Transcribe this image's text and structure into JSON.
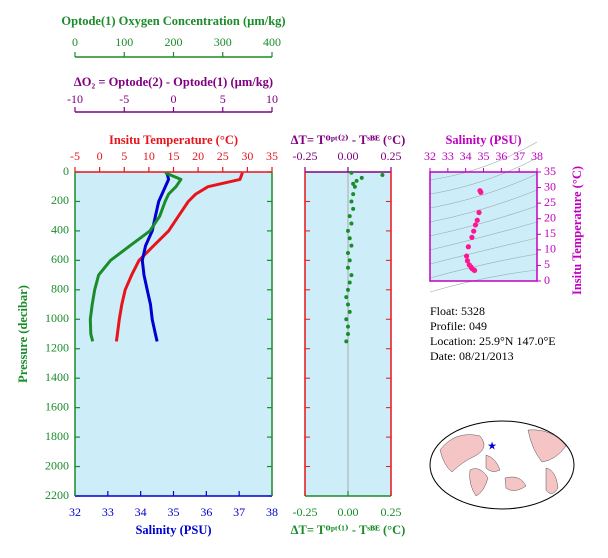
{
  "chart_data": [
    {
      "type": "profile",
      "y_label": "Pressure (decibar)",
      "y_color": "#1a8c2a",
      "ylim": [
        0,
        2200
      ],
      "yticks": [
        0,
        200,
        400,
        600,
        800,
        1000,
        1200,
        1400,
        1600,
        1800,
        2000,
        2200
      ],
      "pressure": [
        5,
        50,
        100,
        150,
        200,
        300,
        400,
        500,
        600,
        700,
        800,
        900,
        1000,
        1100,
        1150
      ],
      "x_axes": [
        {
          "label": "Insitu Temperature (°C)",
          "color": "#e8141c",
          "xlim": [
            -5,
            35
          ],
          "xticks": [
            -5,
            0,
            5,
            10,
            15,
            20,
            25,
            30,
            35
          ]
        },
        {
          "label": "Salinity (PSU)",
          "color": "#0000d0",
          "xlim": [
            32,
            38
          ],
          "xticks": [
            32,
            33,
            34,
            35,
            36,
            37,
            38
          ]
        },
        {
          "label": "Optode(1) Oxygen Concentration (µm/kg)",
          "color": "#1a8c2a",
          "xlim": [
            0,
            400
          ],
          "xticks": [
            0,
            100,
            200,
            300,
            400
          ]
        },
        {
          "label": "ΔO₂ = Optode(2) - Optode(1)     (µm/kg)",
          "color": "#800080",
          "xlim": [
            -10,
            10
          ],
          "xticks": [
            -10,
            -5,
            0,
            5,
            10
          ]
        }
      ],
      "series": [
        {
          "axis": 0,
          "color": "#e8141c",
          "values": [
            29,
            28.5,
            22,
            19.5,
            18,
            16,
            14,
            11,
            8,
            6.5,
            5.2,
            4.5,
            4,
            3.6,
            3.4
          ]
        },
        {
          "axis": 1,
          "color": "#0000d0",
          "values": [
            34.8,
            34.85,
            34.75,
            34.65,
            34.55,
            34.45,
            34.35,
            34.15,
            34.05,
            34.1,
            34.2,
            34.3,
            34.35,
            34.45,
            34.5
          ]
        },
        {
          "axis": 2,
          "color": "#1a8c2a",
          "values": [
            183,
            215,
            205,
            190,
            183,
            172,
            152,
            112,
            72,
            48,
            40,
            35,
            31,
            32,
            36
          ]
        }
      ]
    },
    {
      "type": "scatter",
      "ylim": [
        0,
        2200
      ],
      "pressure": [
        5,
        20,
        40,
        60,
        80,
        100,
        150,
        200,
        250,
        300,
        350,
        400,
        450,
        500,
        550,
        600,
        650,
        700,
        750,
        800,
        850,
        900,
        950,
        1000,
        1050,
        1100,
        1150
      ],
      "x_axes": [
        {
          "label": "ΔT= Tᴼᵖᵗ⁽²⁾ - Tˢᴮᴱ (°C)",
          "color": "#800080",
          "xlim": [
            -0.25,
            0.25
          ],
          "xticks": [
            -0.25,
            {
              "value": 0,
              "label": "0.00"
            },
            0.25
          ]
        },
        {
          "label": "ΔT= Tᴼᵖᵗ⁽¹⁾ - Tˢᴮᴱ (°C)",
          "color": "#1a8c2a",
          "xlim": [
            -0.25,
            0.25
          ],
          "xticks": [
            -0.25,
            {
              "value": 0,
              "label": "0.00"
            },
            0.25
          ]
        }
      ],
      "series": [
        {
          "axis": 1,
          "color": "#1a8c2a",
          "values": [
            0.02,
            0.2,
            0.08,
            0.05,
            0.03,
            0.04,
            0.03,
            0.02,
            0.03,
            0.01,
            0.02,
            0.0,
            0.01,
            0.02,
            0.0,
            0.01,
            0.0,
            0.02,
            0.01,
            0.0,
            -0.01,
            0.0,
            0.01,
            -0.01,
            0.0,
            0.0,
            -0.01
          ]
        }
      ]
    },
    {
      "type": "ts",
      "x_label": "Salinity (PSU)",
      "y_label": "Insitu Temperature (°C)",
      "color": "#c000c0",
      "point_color": "#ff1493",
      "xlim": [
        32,
        38
      ],
      "xticks": [
        32,
        33,
        34,
        35,
        36,
        37,
        38
      ],
      "ylim": [
        0,
        35
      ],
      "yticks": [
        0,
        5,
        10,
        15,
        20,
        25,
        30,
        35
      ]
    }
  ],
  "float_info": [
    "Float:  5328",
    "Profile:  049",
    "Location:  25.9°N  147.0°E",
    "Date:  08/21/2013"
  ]
}
